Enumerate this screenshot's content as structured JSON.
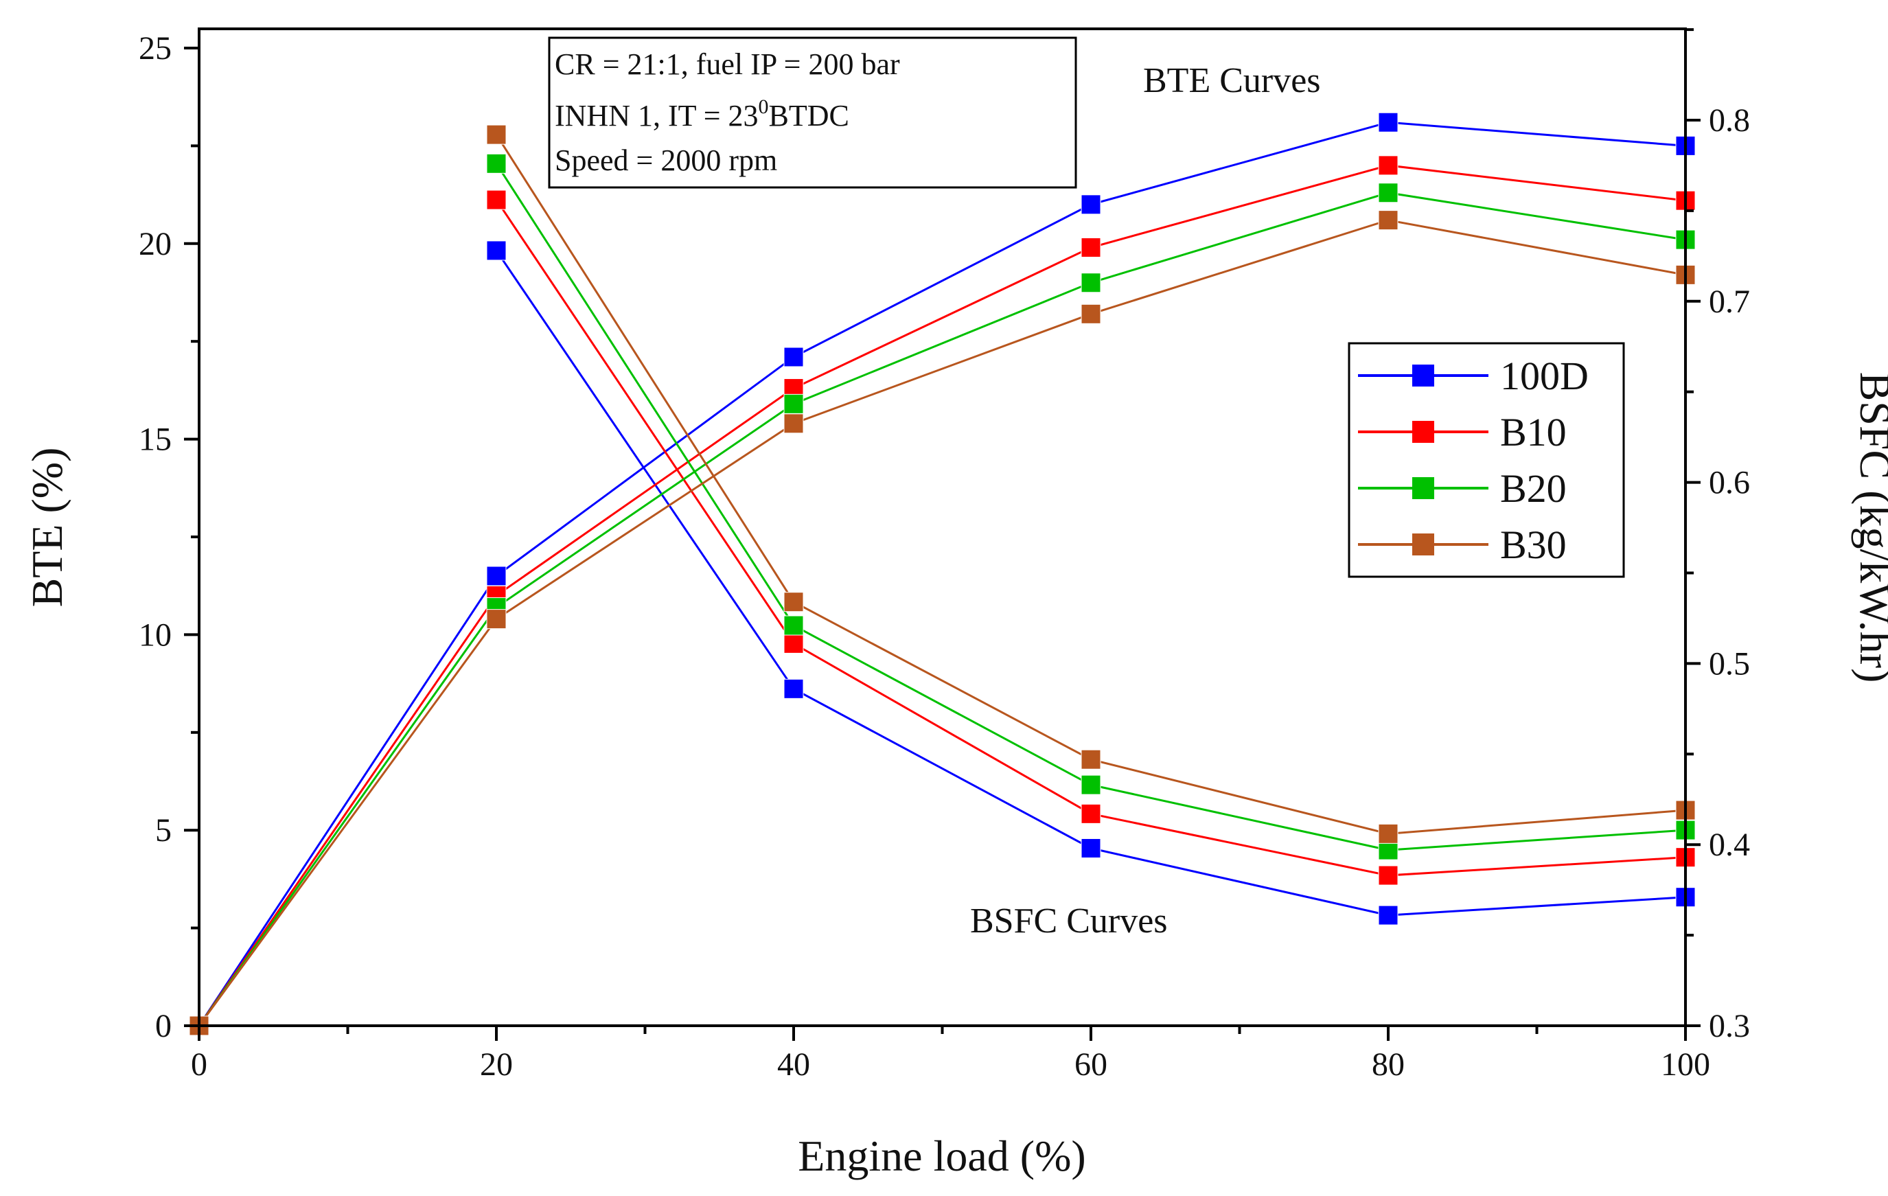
{
  "chart_data": {
    "type": "line",
    "x": [
      0,
      20,
      40,
      60,
      80,
      100
    ],
    "xlabel": "Engine load (%)",
    "ylabel": "BTE (%)",
    "y2label": "BSFC (kg/kW.hr)",
    "xlim": [
      0,
      100
    ],
    "ylim": [
      0,
      25
    ],
    "y2lim": [
      0.3,
      0.85
    ],
    "xticks": [
      "0",
      "20",
      "40",
      "60",
      "80",
      "100"
    ],
    "yticks": [
      "0",
      "5",
      "10",
      "15",
      "20",
      "25"
    ],
    "y2ticks": [
      "0.3",
      "0.4",
      "0.5",
      "0.6",
      "0.7",
      "0.8"
    ],
    "annotations": {
      "bte_curves": "BTE Curves",
      "bsfc_curves": "BSFC Curves"
    },
    "info_box": {
      "line1": "CR = 21:1, fuel IP = 200 bar",
      "line2_prefix": "INHN 1, IT = 23",
      "line2_sup": "0",
      "line2_suffix": "BTDC",
      "line3": "Speed = 2000 rpm"
    },
    "legend_position": "right",
    "series": [
      {
        "name": "100D",
        "color": "#0000ff",
        "bte": [
          0,
          11.5,
          17.1,
          21.0,
          23.1,
          22.5
        ],
        "bsfc": [
          null,
          0.728,
          0.486,
          0.398,
          0.361,
          0.371
        ]
      },
      {
        "name": "B10",
        "color": "#ff0000",
        "bte": [
          0,
          11.0,
          16.3,
          19.9,
          22.0,
          21.1
        ],
        "bsfc": [
          null,
          0.756,
          0.511,
          0.417,
          0.383,
          0.393
        ]
      },
      {
        "name": "B20",
        "color": "#00c000",
        "bte": [
          0,
          10.7,
          15.9,
          19.0,
          21.3,
          20.1
        ],
        "bsfc": [
          null,
          0.776,
          0.521,
          0.433,
          0.397,
          0.408
        ]
      },
      {
        "name": "B30",
        "color": "#b8561e",
        "bte": [
          0,
          10.4,
          15.4,
          18.2,
          20.6,
          19.2
        ],
        "bsfc": [
          null,
          0.792,
          0.534,
          0.447,
          0.406,
          0.419
        ]
      }
    ]
  }
}
